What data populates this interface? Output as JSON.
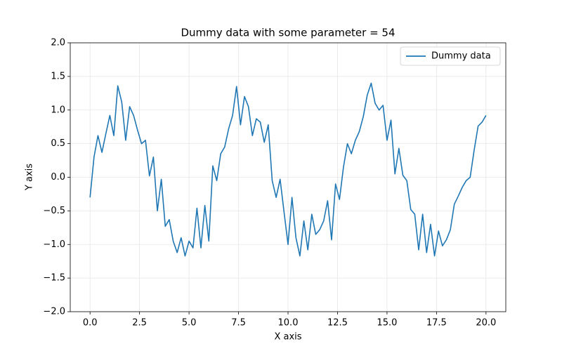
{
  "chart_data": {
    "type": "line",
    "title": "Dummy data with some parameter = 54",
    "xlabel": "X axis",
    "ylabel": "Y axis",
    "x": [
      0,
      0.2,
      0.4,
      0.6,
      0.8,
      1,
      1.2,
      1.4,
      1.6,
      1.8,
      2,
      2.2,
      2.4,
      2.6,
      2.8,
      3,
      3.2,
      3.4,
      3.6,
      3.8,
      4,
      4.2,
      4.4,
      4.6,
      4.8,
      5,
      5.2,
      5.4,
      5.6,
      5.8,
      6,
      6.2,
      6.4,
      6.6,
      6.8,
      7,
      7.2,
      7.4,
      7.6,
      7.8,
      8,
      8.2,
      8.4,
      8.6,
      8.8,
      9,
      9.2,
      9.4,
      9.6,
      9.8,
      10,
      10.2,
      10.4,
      10.6,
      10.8,
      11,
      11.2,
      11.4,
      11.6,
      11.8,
      12,
      12.2,
      12.4,
      12.6,
      12.8,
      13,
      13.2,
      13.4,
      13.6,
      13.8,
      14,
      14.2,
      14.4,
      14.6,
      14.8,
      15,
      15.2,
      15.4,
      15.6,
      15.8,
      16,
      16.2,
      16.4,
      16.6,
      16.8,
      17,
      17.2,
      17.4,
      17.6,
      17.8,
      18,
      18.2,
      18.4,
      18.6,
      18.8,
      19,
      19.2,
      19.4,
      19.6,
      19.8,
      20
    ],
    "series": [
      {
        "name": "Dummy data",
        "color": "#1f77b4",
        "values": [
          -0.3,
          0.3,
          0.62,
          0.37,
          0.65,
          0.92,
          0.62,
          1.36,
          1.12,
          0.55,
          1.05,
          0.92,
          0.7,
          0.5,
          0.55,
          0.02,
          0.3,
          -0.5,
          -0.03,
          -0.73,
          -0.63,
          -0.95,
          -1.12,
          -0.9,
          -1.17,
          -0.95,
          -1.05,
          -0.46,
          -1.05,
          -0.42,
          -0.95,
          0.17,
          -0.05,
          0.35,
          0.45,
          0.72,
          0.92,
          1.35,
          0.78,
          1.2,
          1.05,
          0.62,
          0.87,
          0.82,
          0.52,
          0.78,
          -0.05,
          -0.3,
          -0.03,
          -0.52,
          -1.0,
          -0.3,
          -0.9,
          -1.17,
          -0.65,
          -1.08,
          -0.55,
          -0.85,
          -0.78,
          -0.65,
          -0.35,
          -0.93,
          -0.1,
          -0.33,
          0.15,
          0.5,
          0.35,
          0.55,
          0.68,
          0.9,
          1.22,
          1.4,
          1.1,
          1.0,
          1.07,
          0.55,
          0.85,
          0.05,
          0.43,
          0.03,
          -0.05,
          -0.48,
          -0.55,
          -1.08,
          -0.55,
          -1.12,
          -0.7,
          -1.17,
          -0.8,
          -1.02,
          -0.93,
          -0.78,
          -0.4,
          -0.28,
          -0.15,
          -0.05,
          0.0,
          0.4,
          0.76,
          0.82,
          0.92
        ]
      }
    ],
    "xlim": [
      -1,
      21
    ],
    "xticks": [
      {
        "value": 0,
        "label": "0.0"
      },
      2.5,
      {
        "value": 5,
        "label": "5.0"
      },
      7.5,
      {
        "value": 10,
        "label": "10.0"
      },
      12.5,
      {
        "value": 15,
        "label": "15.0"
      },
      17.5,
      {
        "value": 20,
        "label": "20.0"
      }
    ],
    "ylim": [
      -2,
      2
    ],
    "yticks": [
      {
        "value": -2,
        "label": "−2.0"
      },
      {
        "value": -1.5,
        "label": "−1.5"
      },
      {
        "value": -1,
        "label": "−1.0"
      },
      {
        "value": -0.5,
        "label": "−0.5"
      },
      {
        "value": 0,
        "label": "0.0"
      },
      0.5,
      {
        "value": 1,
        "label": "1.0"
      },
      1.5,
      {
        "value": 2,
        "label": "2.0"
      }
    ],
    "grid": true,
    "legend": "upper right"
  }
}
